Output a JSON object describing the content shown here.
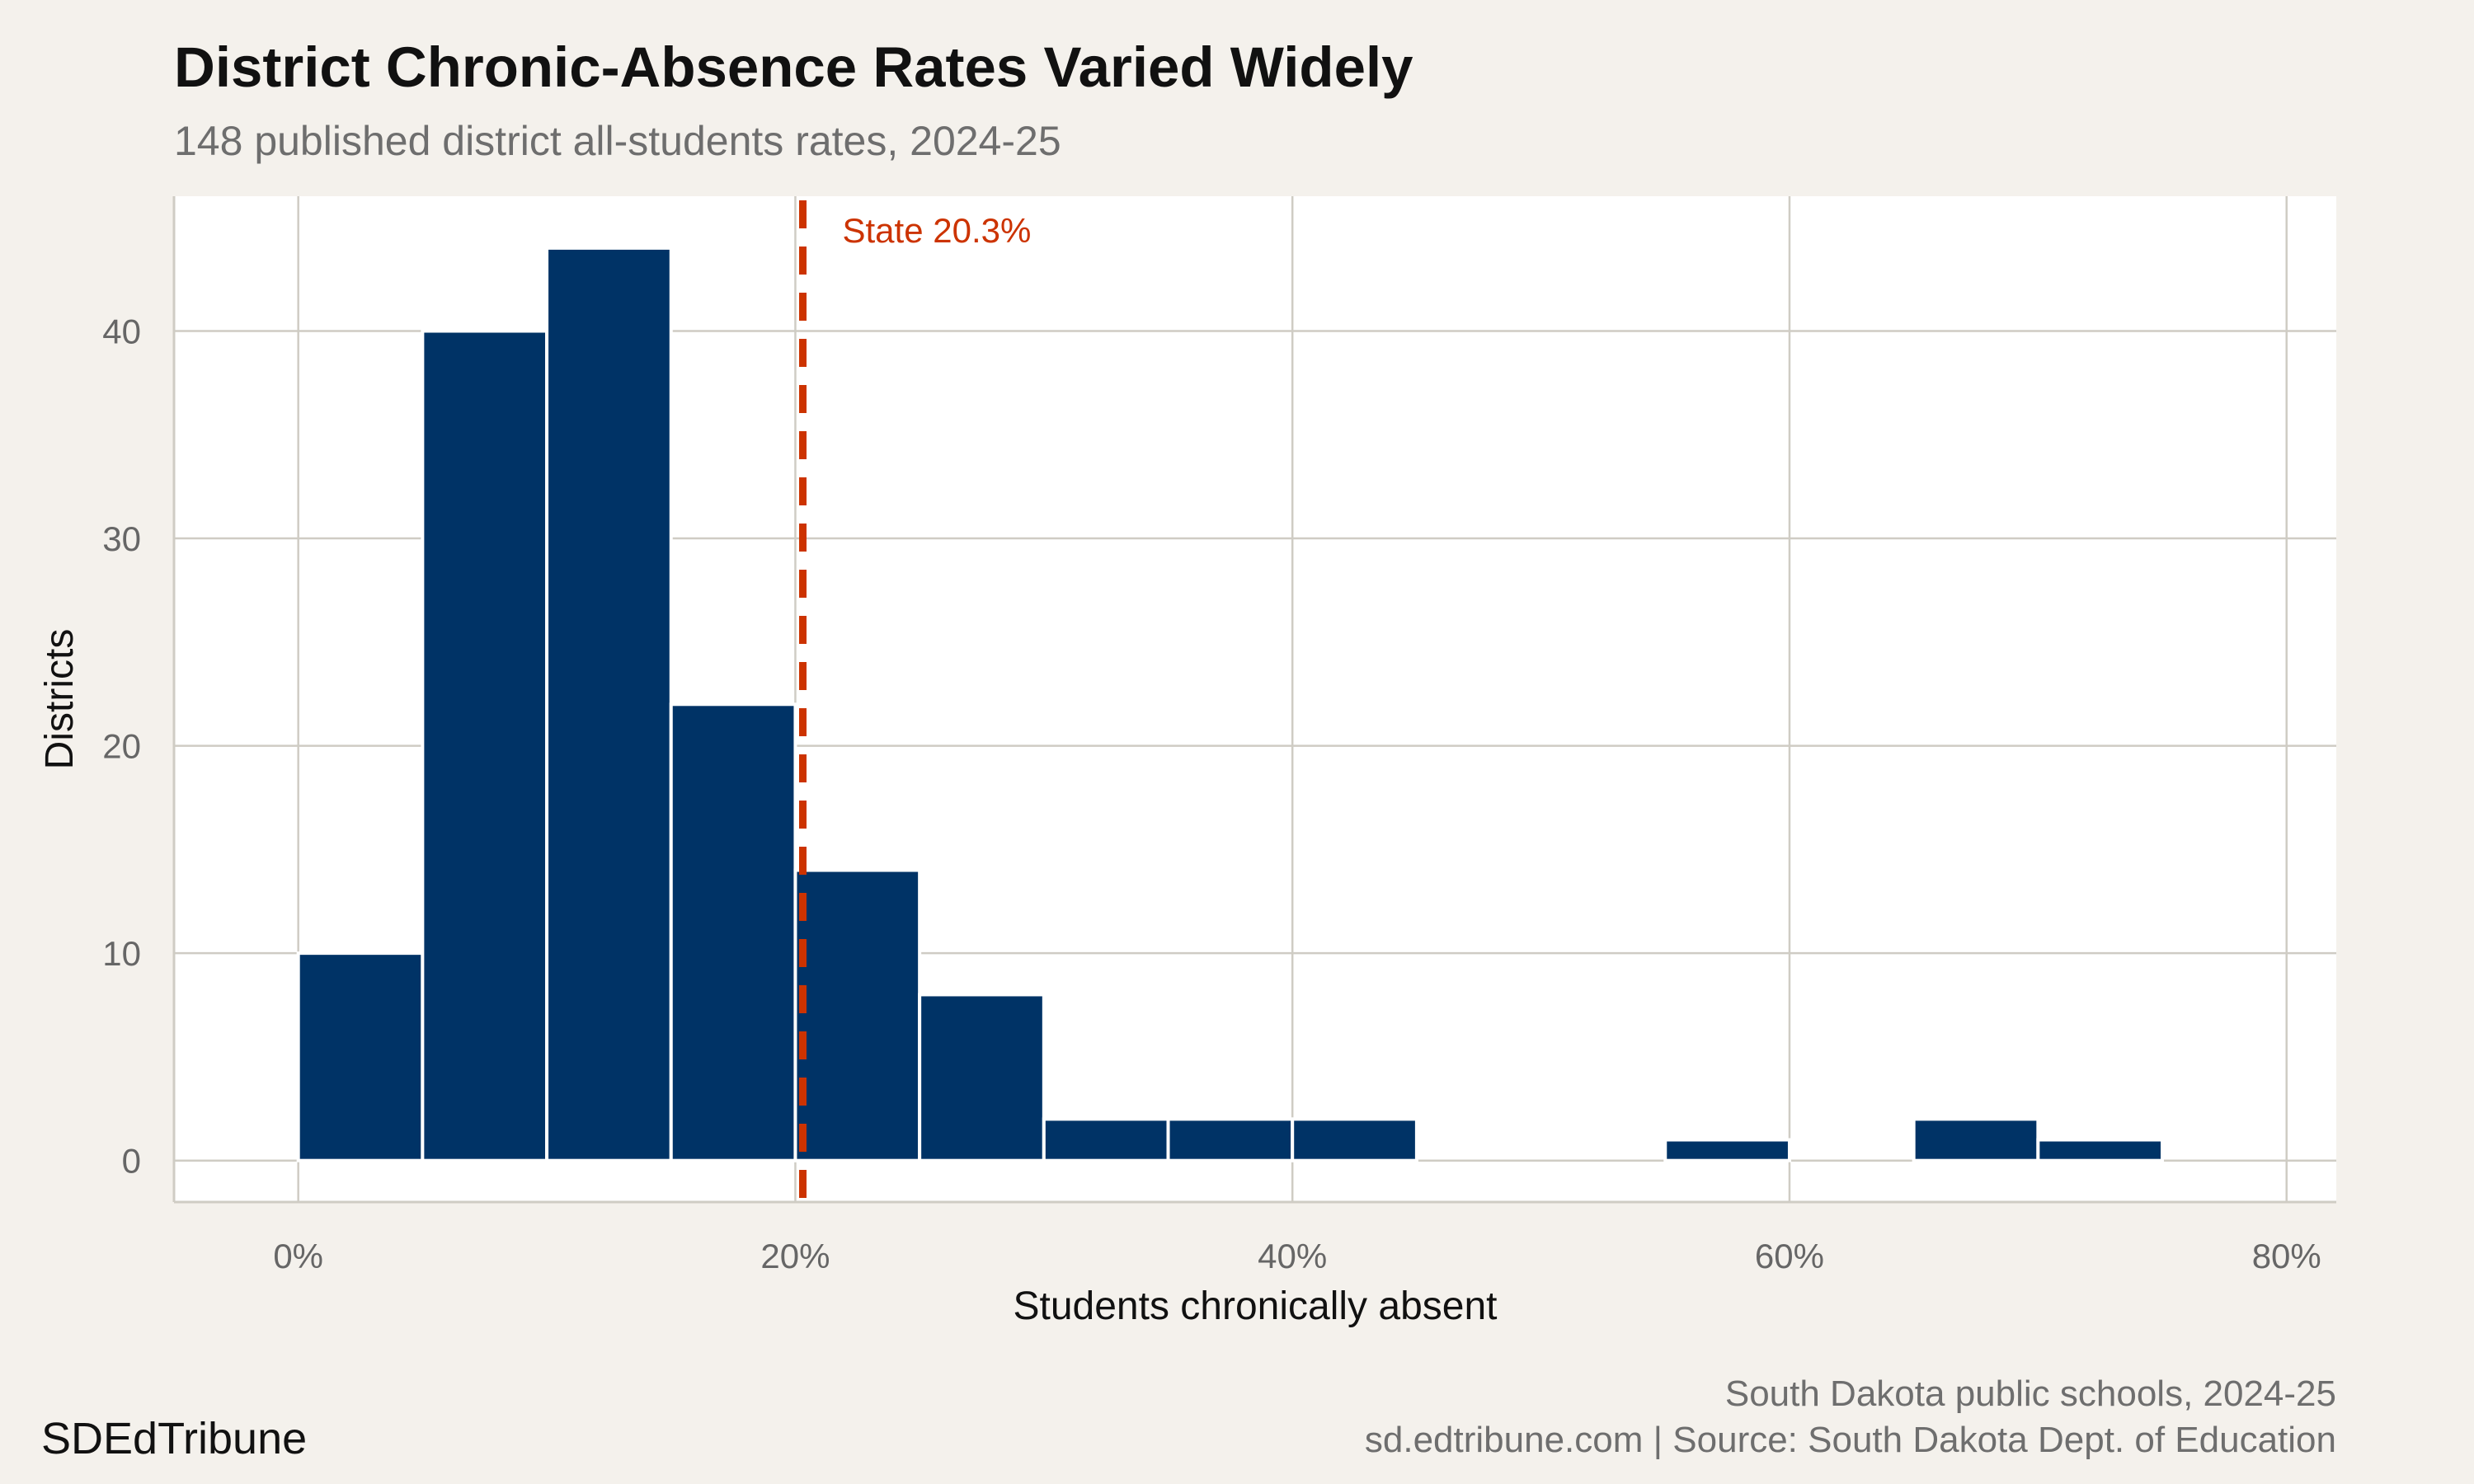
{
  "title": "District Chronic-Absence Rates Varied Widely",
  "subtitle": "148 published district all-students rates, 2024-25",
  "caption_line1": "South Dakota public schools, 2024-25",
  "caption_line2": "sd.edtribune.com | Source: South Dakota Dept. of Education",
  "brand": "SDEdTribune",
  "colors": {
    "background": "#f4f1ec",
    "panel": "#ffffff",
    "bar": "#003366",
    "reference": "#cc3300",
    "grid": "#cfccc4"
  },
  "chart_data": {
    "type": "bar",
    "histogram": true,
    "xlabel": "Students chronically absent",
    "ylabel": "Districts",
    "xlim": [
      -5,
      82
    ],
    "ylim": [
      -2,
      46.5
    ],
    "x_ticks": [
      0,
      20,
      40,
      60,
      80
    ],
    "x_tick_labels": [
      "0%",
      "20%",
      "40%",
      "60%",
      "80%"
    ],
    "y_ticks": [
      0,
      10,
      20,
      30,
      40
    ],
    "y_tick_labels": [
      "0",
      "10",
      "20",
      "30",
      "40"
    ],
    "grid": true,
    "bins": [
      {
        "x0": 0,
        "x1": 5,
        "count": 10
      },
      {
        "x0": 5,
        "x1": 10,
        "count": 40
      },
      {
        "x0": 10,
        "x1": 15,
        "count": 44
      },
      {
        "x0": 15,
        "x1": 20,
        "count": 22
      },
      {
        "x0": 20,
        "x1": 25,
        "count": 14
      },
      {
        "x0": 25,
        "x1": 30,
        "count": 8
      },
      {
        "x0": 30,
        "x1": 35,
        "count": 2
      },
      {
        "x0": 35,
        "x1": 40,
        "count": 2
      },
      {
        "x0": 40,
        "x1": 45,
        "count": 2
      },
      {
        "x0": 45,
        "x1": 50,
        "count": 0
      },
      {
        "x0": 50,
        "x1": 55,
        "count": 0
      },
      {
        "x0": 55,
        "x1": 60,
        "count": 1
      },
      {
        "x0": 60,
        "x1": 65,
        "count": 0
      },
      {
        "x0": 65,
        "x1": 70,
        "count": 2
      },
      {
        "x0": 70,
        "x1": 75,
        "count": 1
      }
    ],
    "reference_line": {
      "value": 20.3,
      "label": "State 20.3%"
    }
  }
}
